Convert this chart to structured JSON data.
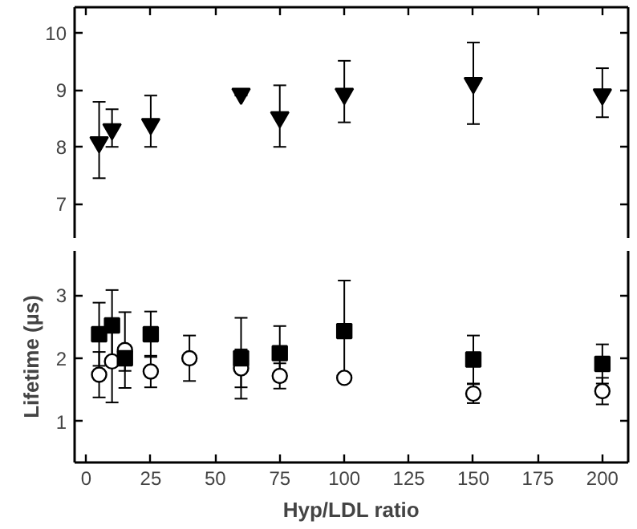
{
  "chart_data": [
    {
      "type": "scatter",
      "x": [
        5,
        10,
        25,
        60,
        75,
        100,
        150,
        200
      ],
      "xlim": [
        -4.5,
        210
      ],
      "xticks": [
        {
          "value": 0,
          "label": null
        },
        {
          "value": 25,
          "label": null
        },
        {
          "value": 50,
          "label": null
        },
        {
          "value": 75,
          "label": null
        },
        {
          "value": 100,
          "label": null
        },
        {
          "value": 125,
          "label": null
        },
        {
          "value": 150,
          "label": null
        },
        {
          "value": 175,
          "label": null
        },
        {
          "value": 200,
          "label": null
        }
      ],
      "ylim": [
        6.4,
        10.45
      ],
      "yticks": [
        7,
        8,
        9,
        10
      ],
      "tick_labels": "y",
      "grid": false,
      "marker": "triangle",
      "series": [
        {
          "color": "#000000",
          "values": [
            8.08,
            8.31,
            8.4,
            8.93,
            8.52,
            8.93,
            9.12,
            8.92
          ],
          "errors": [
            [
              7.45,
              8.79
            ],
            [
              8.0,
              8.66
            ],
            [
              8.0,
              8.9
            ],
            [
              8.9,
              8.97
            ],
            [
              8.0,
              9.08
            ],
            [
              8.43,
              9.51
            ],
            [
              8.4,
              9.83
            ],
            [
              8.52,
              9.38
            ]
          ]
        }
      ]
    },
    {
      "type": "scatter",
      "x": [
        5,
        10,
        15,
        25,
        40,
        60,
        75,
        100,
        150,
        200
      ],
      "xlim": [
        -4.5,
        210
      ],
      "xticks": [
        0,
        25,
        50,
        75,
        100,
        125,
        150,
        175,
        200
      ],
      "ylim": [
        0.35,
        3.7
      ],
      "yticks": [
        1,
        2,
        3
      ],
      "xlabel": "Hyp/LDL ratio",
      "ylabel": "Lifetime (µs)",
      "grid": false,
      "series": [
        {
          "color": "#000000",
          "marker": "square",
          "values": [
            2.38,
            2.52,
            2.0,
            2.38,
            null,
            2.0,
            2.08,
            2.43,
            1.98,
            1.91
          ],
          "errors": [
            0.5,
            0.56,
            0.2,
            0.36,
            null,
            0.64,
            0.43,
            0.8,
            0.38,
            0.31
          ]
        },
        {
          "color": "#000000",
          "marker": "circle",
          "values": [
            1.74,
            1.95,
            2.13,
            1.79,
            2.0,
            1.84,
            1.72,
            1.69,
            1.44,
            1.48
          ],
          "errors": [
            0.36,
            0.65,
            0.6,
            0.25,
            0.36,
            0.3,
            0.2,
            0.07,
            0.15,
            0.21
          ]
        }
      ]
    }
  ]
}
